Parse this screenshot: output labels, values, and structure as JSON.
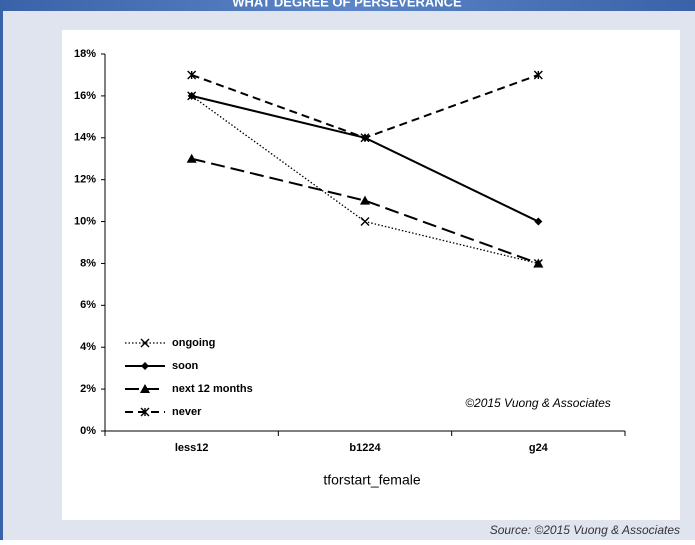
{
  "header": {
    "title": "WHAT DEGREE OF PERSEVERANCE"
  },
  "chart_data": {
    "type": "line",
    "categories": [
      "less12",
      "b1224",
      "g24"
    ],
    "series": [
      {
        "name": "ongoing",
        "color": "#000000",
        "line_style": "dotted",
        "marker": "x",
        "values": [
          16,
          10,
          8
        ]
      },
      {
        "name": "soon",
        "color": "#000000",
        "line_style": "solid",
        "marker": "diamond",
        "values": [
          16,
          14,
          10
        ]
      },
      {
        "name": "next 12 months",
        "color": "#000000",
        "line_style": "long-dash",
        "marker": "triangle",
        "values": [
          13,
          11,
          8
        ]
      },
      {
        "name": "never",
        "color": "#000000",
        "line_style": "dash",
        "marker": "asterisk",
        "values": [
          17,
          14,
          17
        ]
      }
    ],
    "xlabel": "tforstart_female",
    "annotation": "©2015 Vuong & Associates",
    "ylim": [
      0,
      18
    ],
    "yticks": [
      {
        "value": 0,
        "label": "0%"
      },
      {
        "value": 2,
        "label": "2%"
      },
      {
        "value": 4,
        "label": "4%"
      },
      {
        "value": 6,
        "label": "6%"
      },
      {
        "value": 8,
        "label": "8%"
      },
      {
        "value": 10,
        "label": "10%"
      },
      {
        "value": 12,
        "label": "12%"
      },
      {
        "value": 14,
        "label": "14%"
      },
      {
        "value": 16,
        "label": "16%"
      },
      {
        "value": 18,
        "label": "18%"
      }
    ],
    "legend": "lower left"
  },
  "source": "Source: ©2015 Vuong & Associates"
}
